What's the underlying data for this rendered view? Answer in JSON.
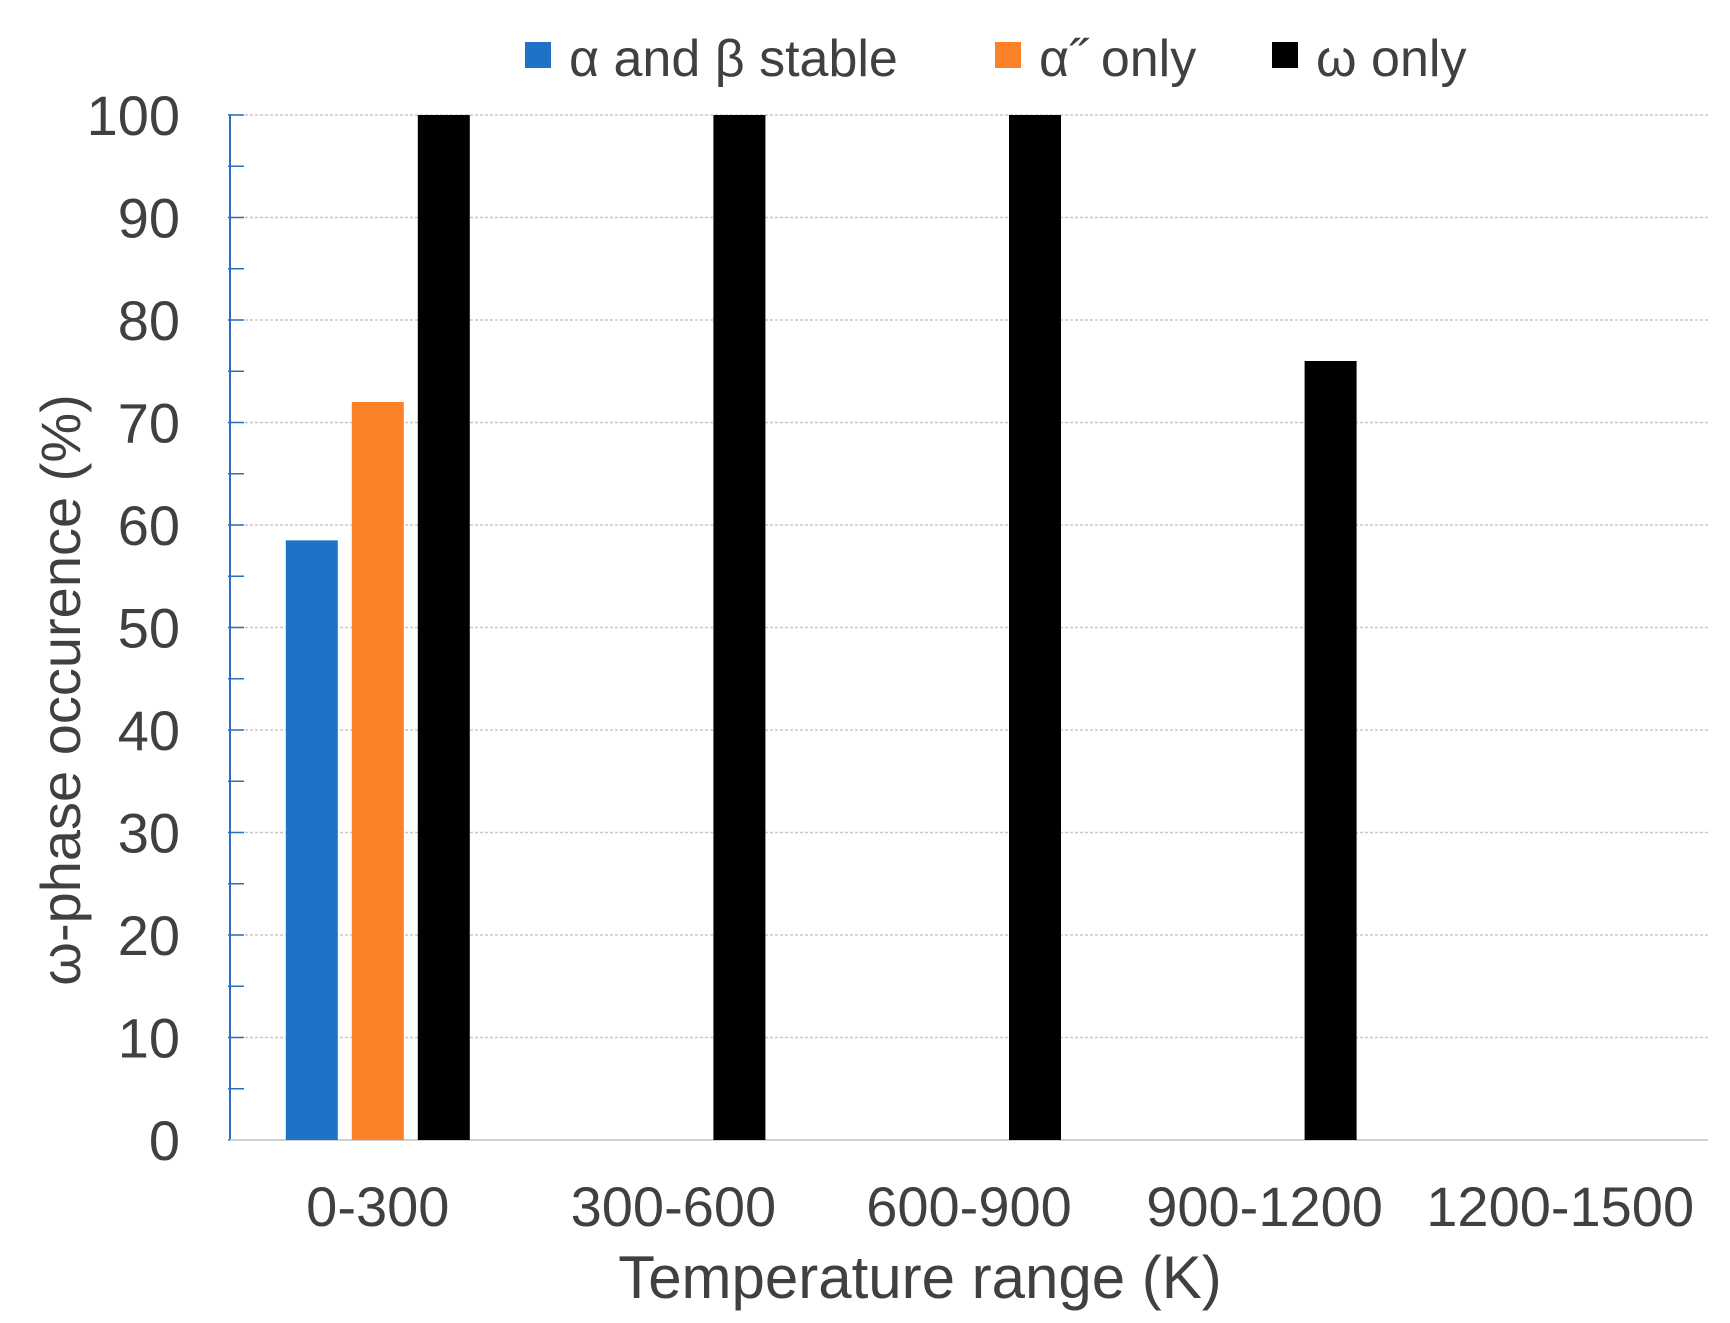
{
  "chart_data": {
    "type": "bar",
    "title": "",
    "xlabel": "Temperature range (K)",
    "ylabel": "ω-phase occurence (%)",
    "categories": [
      "0-300",
      "300-600",
      "600-900",
      "900-1200",
      "1200-1500"
    ],
    "ylim": [
      0,
      100
    ],
    "yticks": [
      0,
      10,
      20,
      30,
      40,
      50,
      60,
      70,
      80,
      90,
      100
    ],
    "grid": true,
    "legend_position": "top",
    "series": [
      {
        "name": "α and β stable",
        "color": "#1f72c8",
        "values": [
          58.5,
          0,
          0,
          0,
          0
        ]
      },
      {
        "name": "α˝ only",
        "color": "#fd8227",
        "values": [
          72,
          0,
          0,
          0,
          0
        ]
      },
      {
        "name": "ω only",
        "color": "#000000",
        "values": [
          100,
          100,
          100,
          76,
          0
        ]
      }
    ]
  }
}
